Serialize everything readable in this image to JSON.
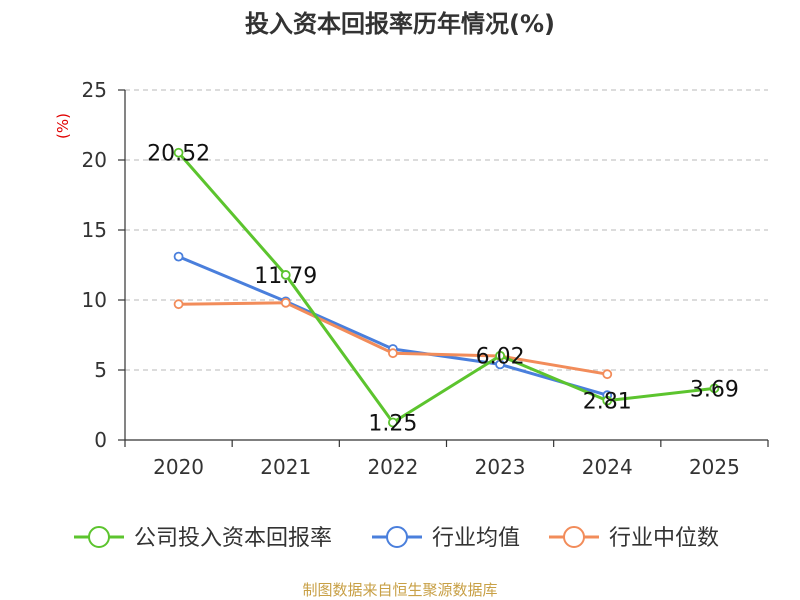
{
  "title": "投入资本回报率历年情况(%)",
  "source": "制图数据来自恒生聚源数据库",
  "chart_data": {
    "type": "line",
    "title": "投入资本回报率历年情况(%)",
    "ylabel": "(%)",
    "xlabel": "",
    "categories": [
      "2020",
      "2021",
      "2022",
      "2023",
      "2024",
      "2025"
    ],
    "ylim": [
      0,
      25
    ],
    "yticks": [
      0,
      5,
      10,
      15,
      20,
      25
    ],
    "grid": true,
    "legend_position": "bottom",
    "colors": {
      "company": "#5cc42e",
      "industry_avg": "#4a7fdc",
      "industry_median": "#f28c5a",
      "ylabel": "#e00000"
    },
    "series": [
      {
        "key": "company",
        "name": "公司投入资本回报率",
        "values": [
          20.52,
          11.79,
          1.25,
          6.02,
          2.81,
          3.69
        ],
        "labels": [
          "20.52",
          "11.79",
          "1.25",
          "6.02",
          "2.81",
          "3.69"
        ]
      },
      {
        "key": "industry_avg",
        "name": "行业均值",
        "values": [
          13.1,
          9.9,
          6.5,
          5.4,
          3.2,
          null
        ]
      },
      {
        "key": "industry_median",
        "name": "行业中位数",
        "values": [
          9.7,
          9.8,
          6.2,
          6.0,
          4.7,
          null
        ]
      }
    ]
  }
}
